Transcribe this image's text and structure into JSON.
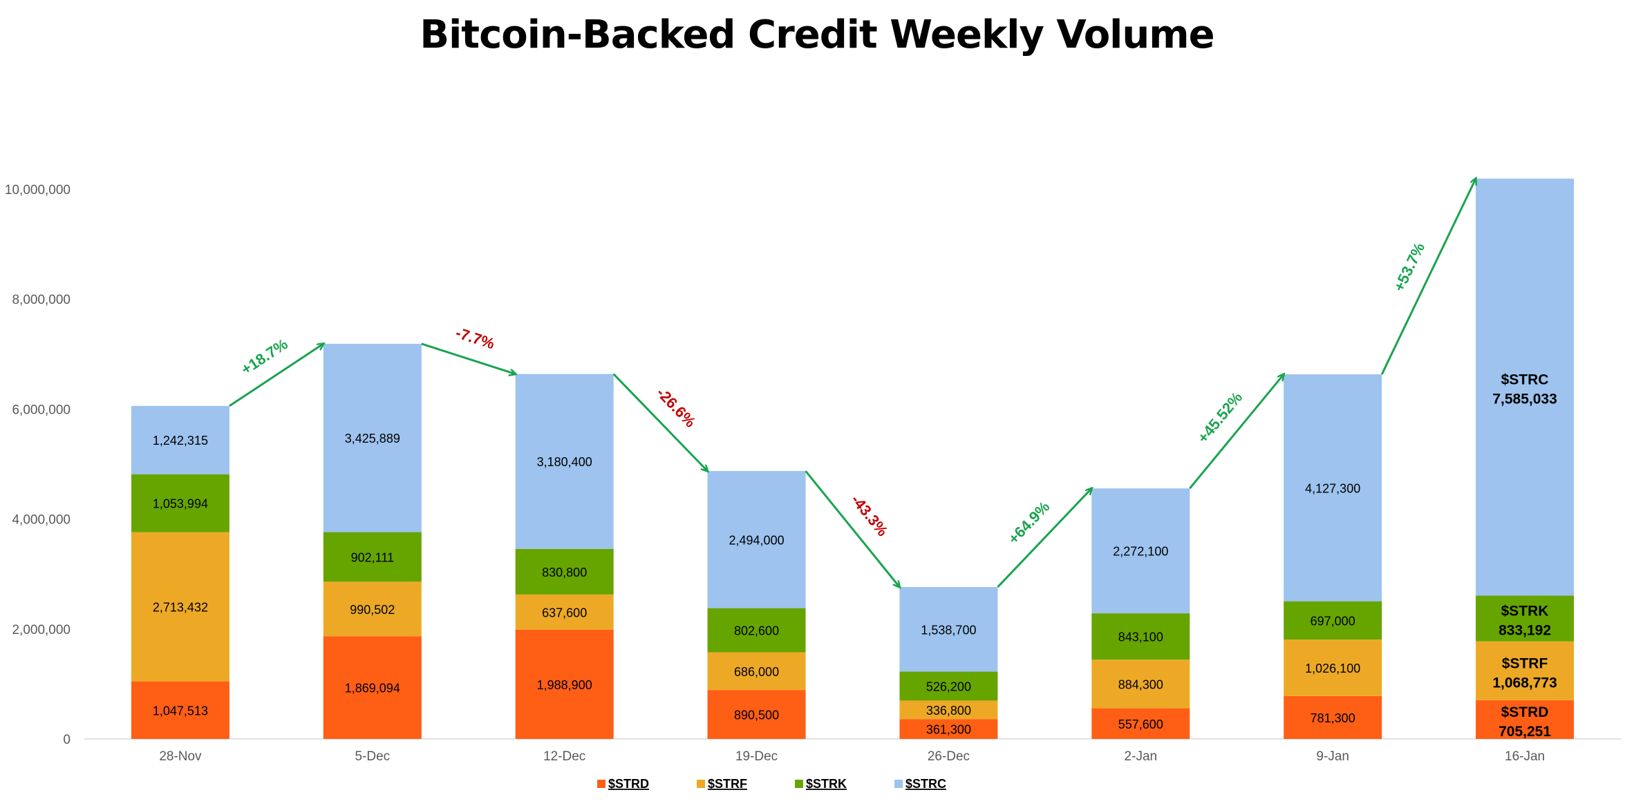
{
  "chart_data": {
    "type": "bar",
    "stacked": true,
    "title": "Bitcoin-Backed Credit Weekly Volume",
    "categories": [
      "28-Nov",
      "5-Dec",
      "12-Dec",
      "19-Dec",
      "26-Dec",
      "2-Jan",
      "9-Jan",
      "16-Jan"
    ],
    "series": [
      {
        "name": "$STRD",
        "color": "#FF5F15",
        "values": [
          1047513,
          1869094,
          1988900,
          890500,
          361300,
          557600,
          781300,
          705251
        ],
        "labels": [
          "1,047,513",
          "1,869,094",
          "1,988,900",
          "890,500",
          "361,300",
          "557,600",
          "781,300",
          "705,251"
        ]
      },
      {
        "name": "$STRF",
        "color": "#EDA926",
        "values": [
          2713432,
          990502,
          637600,
          686000,
          336800,
          884300,
          1026100,
          1068773
        ],
        "labels": [
          "2,713,432",
          "990,502",
          "637,600",
          "686,000",
          "336,800",
          "884,300",
          "1,026,100",
          "1,068,773"
        ]
      },
      {
        "name": "$STRK",
        "color": "#66A500",
        "values": [
          1053994,
          902111,
          830800,
          802600,
          526200,
          843100,
          697000,
          833192
        ],
        "labels": [
          "1,053,994",
          "902,111",
          "830,800",
          "802,600",
          "526,200",
          "843,100",
          "697,000",
          "833,192"
        ]
      },
      {
        "name": "$STRC",
        "color": "#9DC3EE",
        "values": [
          1242315,
          3425889,
          3180400,
          2494000,
          1538700,
          2272100,
          4127300,
          7585033
        ],
        "labels": [
          "1,242,315",
          "3,425,889",
          "3,180,400",
          "2,494,000",
          "1,538,700",
          "2,272,100",
          "4,127,300",
          "7,585,033"
        ]
      }
    ],
    "y_ticks": [
      "0",
      "2,000,000",
      "4,000,000",
      "6,000,000",
      "8,000,000",
      "10,000,000"
    ],
    "y_tick_values": [
      0,
      2000000,
      4000000,
      6000000,
      8000000,
      10000000
    ],
    "ylim": [
      0,
      10200000
    ],
    "annotations": [
      {
        "text": "+18.7%",
        "color": "#19A44F",
        "direction": "up"
      },
      {
        "text": "-7.7%",
        "color": "#C00000",
        "direction": "down"
      },
      {
        "text": "-26.6%",
        "color": "#C00000",
        "direction": "down"
      },
      {
        "text": "-43.3%",
        "color": "#C00000",
        "direction": "down"
      },
      {
        "text": "+64.9%",
        "color": "#19A44F",
        "direction": "up"
      },
      {
        "text": "+45.52%",
        "color": "#19A44F",
        "direction": "up"
      },
      {
        "text": "+53.7%",
        "color": "#19A44F",
        "direction": "up"
      }
    ],
    "legend": {
      "position": "bottom",
      "entries": [
        "$STRD",
        "$STRF",
        "$STRK",
        "$STRC"
      ]
    },
    "grid": false
  }
}
